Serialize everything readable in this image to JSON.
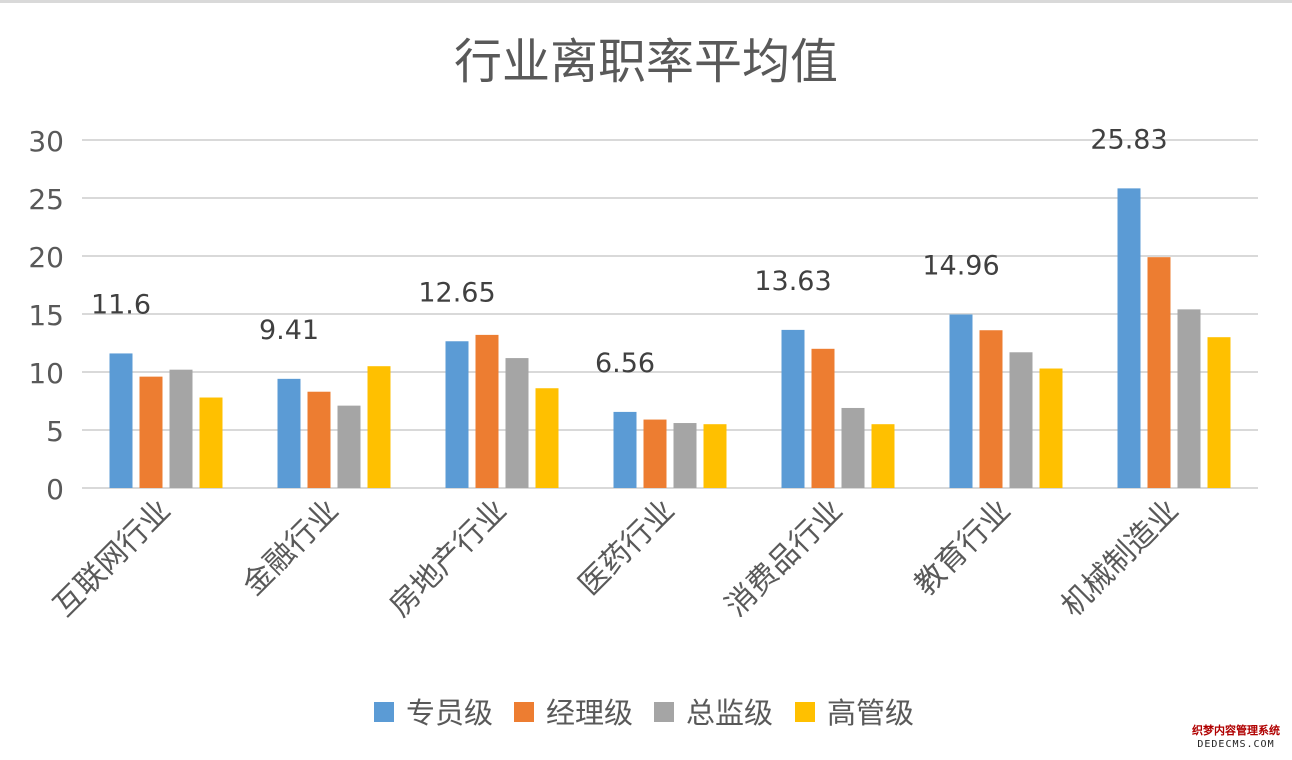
{
  "chart_data": {
    "type": "bar",
    "title": "行业离职率平均值",
    "categories": [
      "互联网行业",
      "金融行业",
      "房地产行业",
      "医药行业",
      "消费品行业",
      "教育行业",
      "机械制造业"
    ],
    "series": [
      {
        "name": "专员级",
        "color": "#5b9bd5",
        "values": [
          11.6,
          9.41,
          12.65,
          6.56,
          13.63,
          14.96,
          25.83
        ]
      },
      {
        "name": "经理级",
        "color": "#ed7d31",
        "values": [
          9.6,
          8.3,
          13.2,
          5.9,
          12.0,
          13.6,
          19.9
        ]
      },
      {
        "name": "总监级",
        "color": "#a5a5a5",
        "values": [
          10.2,
          7.1,
          11.2,
          5.6,
          6.9,
          11.7,
          15.4
        ]
      },
      {
        "name": "高管级",
        "color": "#ffc000",
        "values": [
          7.8,
          10.5,
          8.6,
          5.5,
          5.5,
          10.3,
          13.0
        ]
      }
    ],
    "data_labels": [
      "11.6",
      "9.41",
      "12.65",
      "6.56",
      "13.63",
      "14.96",
      "25.83"
    ],
    "y_ticks": [
      "0",
      "5",
      "10",
      "15",
      "20",
      "25",
      "30"
    ],
    "ylim": [
      0,
      30
    ],
    "grid": true,
    "legend_position": "bottom"
  },
  "watermark": {
    "line1": "织梦内容管理系统",
    "line2": "DEDECMS.COM"
  }
}
